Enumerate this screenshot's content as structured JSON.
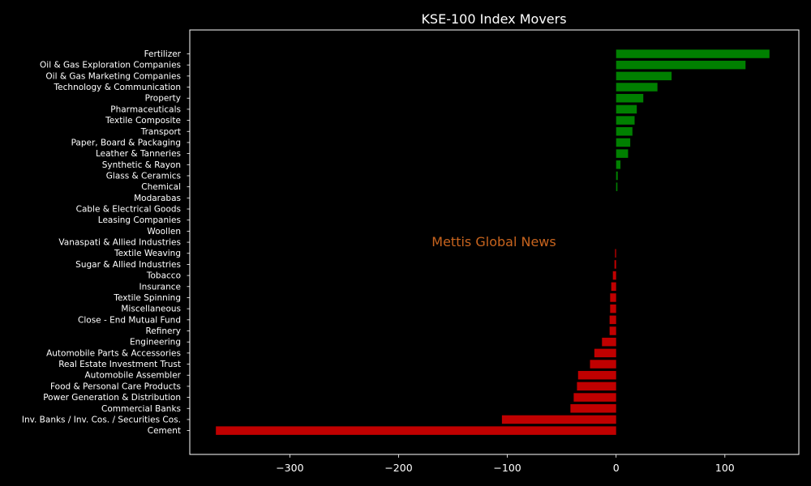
{
  "chart_data": {
    "type": "bar",
    "orientation": "horizontal",
    "title": "KSE-100 Index Movers",
    "watermark": "Mettis Global News",
    "xlabel": "",
    "ylabel": "",
    "xlim": [
      -392,
      168
    ],
    "xticks": [
      -300,
      -200,
      -100,
      0,
      100
    ],
    "xtick_labels": [
      "−300",
      "−200",
      "−100",
      "0",
      "100"
    ],
    "grid": false,
    "colors": {
      "positive": "#008000",
      "negative": "#c00000",
      "background": "#000000",
      "text": "#ffffff",
      "watermark": "#c8641e"
    },
    "categories": [
      "Fertilizer",
      "Oil & Gas Exploration Companies",
      "Oil & Gas Marketing Companies",
      "Technology & Communication",
      "Property",
      "Pharmaceuticals",
      "Textile Composite",
      "Transport",
      "Paper, Board & Packaging",
      "Leather & Tanneries",
      "Synthetic & Rayon",
      "Glass & Ceramics",
      "Chemical",
      "Modarabas",
      "Cable & Electrical Goods",
      "Leasing Companies",
      "Woollen",
      "Vanaspati & Allied Industries",
      "Textile Weaving",
      "Sugar & Allied Industries",
      "Tobacco",
      "Insurance",
      "Textile Spinning",
      "Miscellaneous",
      "Close - End Mutual Fund",
      "Refinery",
      "Engineering",
      "Automobile Parts & Accessories",
      "Real Estate Investment Trust",
      "Automobile Assembler",
      "Food & Personal Care Products",
      "Power Generation & Distribution",
      "Commercial Banks",
      "Inv. Banks / Inv. Cos. / Securities Cos.",
      "Cement"
    ],
    "values": [
      141,
      119,
      51,
      38,
      25,
      19,
      17,
      15,
      13,
      11,
      4,
      1.5,
      1.2,
      0,
      0,
      0,
      0,
      0,
      -1,
      -1.5,
      -3,
      -4.5,
      -5.5,
      -5.5,
      -6,
      -6,
      -13,
      -20,
      -24,
      -35,
      -36,
      -39,
      -42,
      -105,
      -368
    ]
  }
}
